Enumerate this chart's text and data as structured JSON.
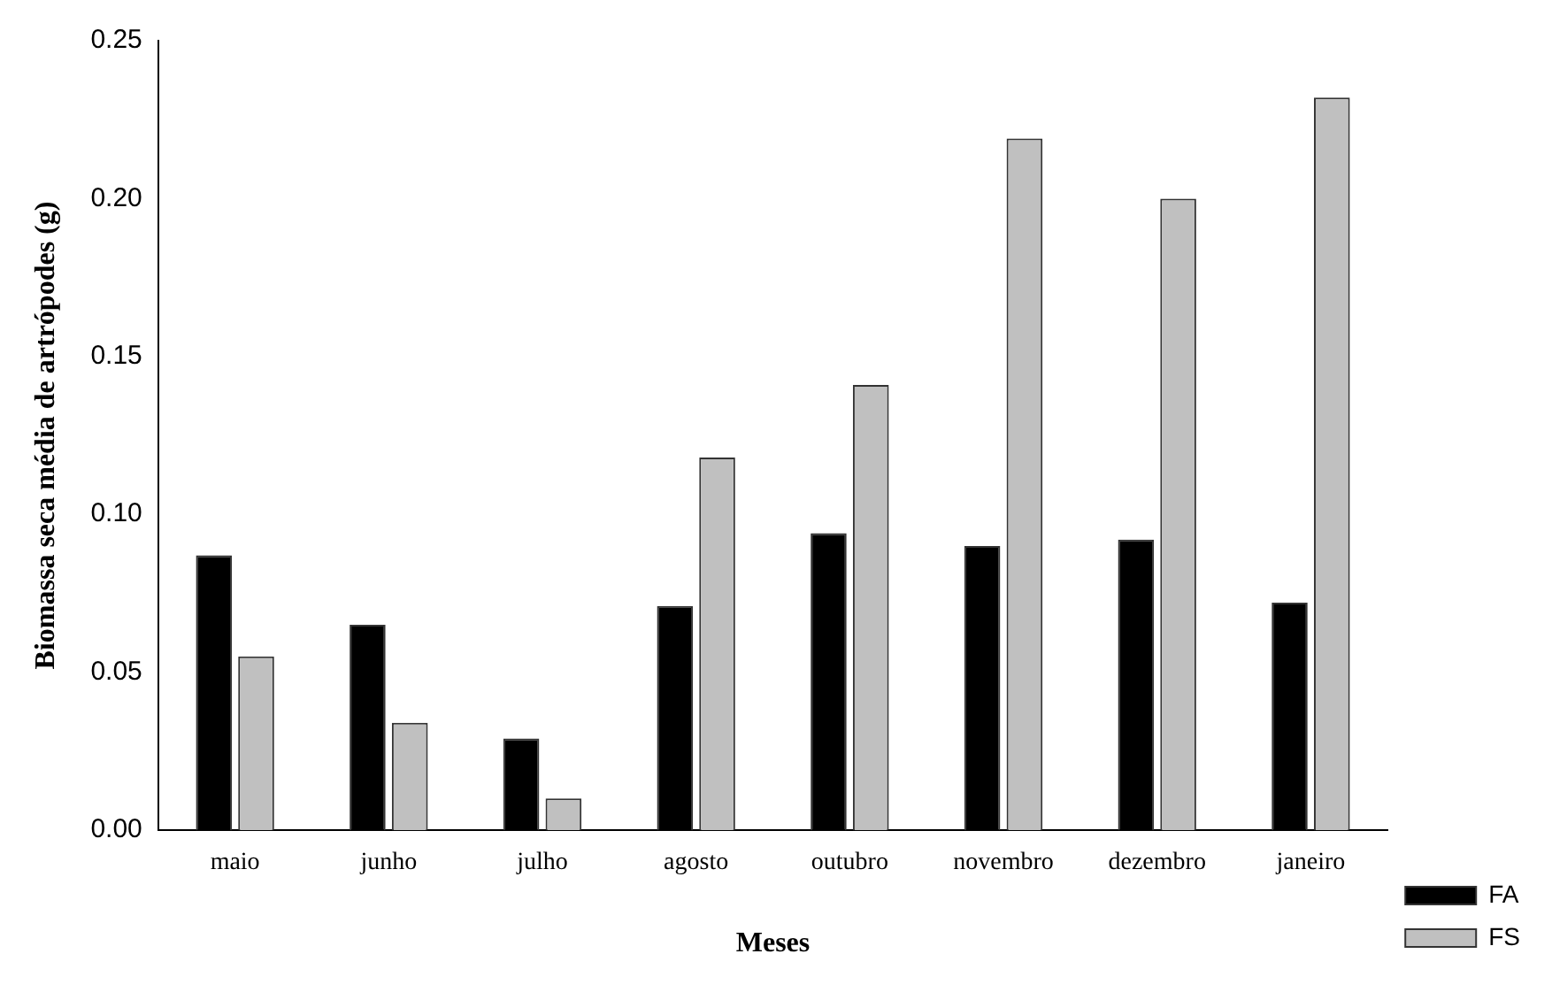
{
  "chart_data": {
    "type": "bar",
    "xlabel": "Meses",
    "ylabel": "Biomassa seca média de artrópodes (g)",
    "categories": [
      "maio",
      "junho",
      "julho",
      "agosto",
      "outubro",
      "novembro",
      "dezembro",
      "janeiro"
    ],
    "series": [
      {
        "name": "FA",
        "color": "#000000",
        "values": [
          0.087,
          0.065,
          0.029,
          0.071,
          0.094,
          0.09,
          0.092,
          0.072
        ]
      },
      {
        "name": "FS",
        "color": "#c0c0c0",
        "values": [
          0.055,
          0.034,
          0.01,
          0.118,
          0.141,
          0.219,
          0.2,
          0.232
        ]
      }
    ],
    "ylim": [
      0,
      0.25
    ],
    "yticks": [
      {
        "value": 0,
        "label": "0.00"
      },
      {
        "value": 0.05,
        "label": "0.05"
      },
      {
        "value": 0.1,
        "label": "0.10"
      },
      {
        "value": 0.15,
        "label": "0.15"
      },
      {
        "value": 0.2,
        "label": "0.20"
      },
      {
        "value": 0.25,
        "label": "0.25"
      }
    ],
    "grid": false,
    "legend": "bottom right"
  }
}
